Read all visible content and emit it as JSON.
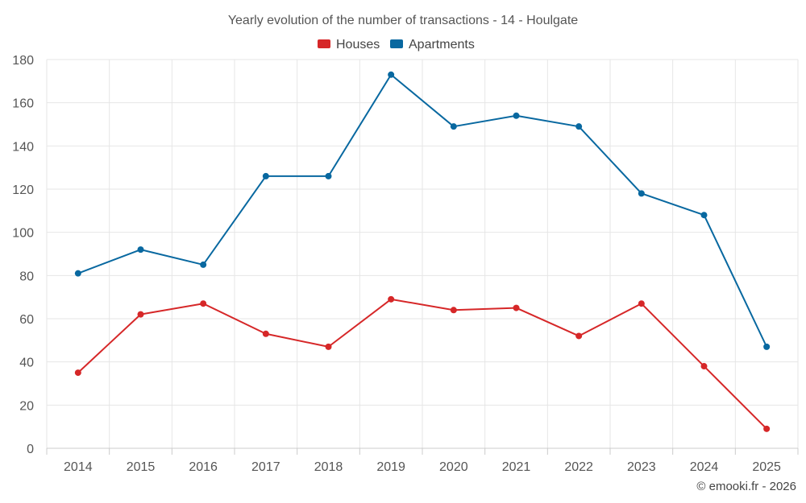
{
  "chart_data": {
    "type": "line",
    "title": "Yearly evolution of the number of transactions - 14 - Houlgate",
    "categories": [
      "2014",
      "2015",
      "2016",
      "2017",
      "2018",
      "2019",
      "2020",
      "2021",
      "2022",
      "2023",
      "2024",
      "2025"
    ],
    "ylim": [
      0,
      180
    ],
    "yticks": [
      0,
      20,
      40,
      60,
      80,
      100,
      120,
      140,
      160,
      180
    ],
    "grid": true,
    "legend_position": "top-center",
    "series": [
      {
        "name": "Houses",
        "color": "#d62728",
        "values": [
          35,
          62,
          67,
          53,
          47,
          69,
          64,
          65,
          52,
          67,
          38,
          9
        ]
      },
      {
        "name": "Apartments",
        "color": "#0868a0",
        "values": [
          81,
          92,
          85,
          126,
          126,
          173,
          149,
          154,
          149,
          118,
          108,
          47
        ]
      }
    ],
    "xlabel": "",
    "ylabel": ""
  },
  "credit": "© emooki.fr - 2026"
}
